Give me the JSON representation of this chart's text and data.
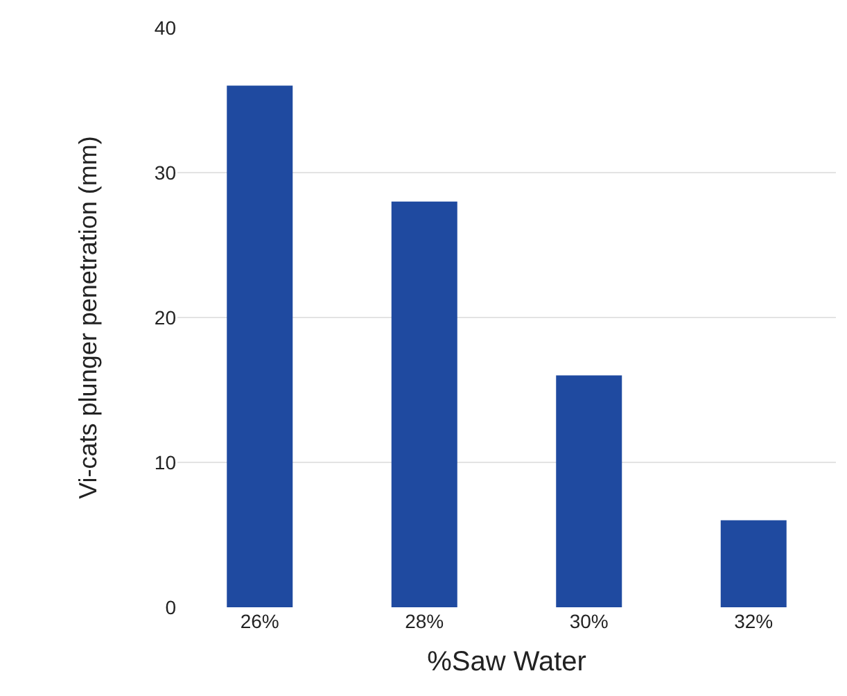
{
  "chart_data": {
    "type": "bar",
    "xlabel": "%Saw Water",
    "ylabel": "Vi-cats plunger penetration (mm)",
    "categories": [
      "26%",
      "28%",
      "30%",
      "32%"
    ],
    "values": [
      36,
      28,
      16,
      6
    ],
    "color": "#1f4aa0",
    "ylim": [
      0,
      40
    ],
    "yticks": [
      0,
      10,
      20,
      30,
      40
    ],
    "grid": "y"
  }
}
